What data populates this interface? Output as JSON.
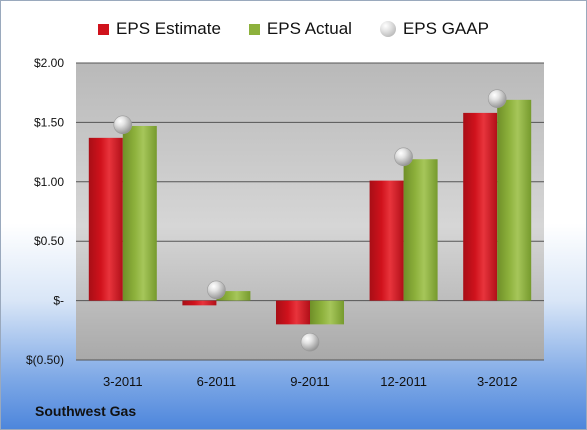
{
  "legend": {
    "estimate_label": "EPS Estimate",
    "actual_label": "EPS Actual",
    "gaap_label": "EPS GAAP"
  },
  "company": "Southwest Gas",
  "colors": {
    "estimate": "#d0121c",
    "actual": "#8db13c",
    "gaap": "#bdbdbd"
  },
  "chart_data": {
    "type": "bar",
    "title": "",
    "xlabel": "",
    "ylabel": "",
    "categories": [
      "3-2011",
      "6-2011",
      "9-2011",
      "12-2011",
      "3-2012"
    ],
    "series": [
      {
        "name": "EPS Estimate",
        "values": [
          1.37,
          -0.04,
          -0.2,
          1.01,
          1.58
        ]
      },
      {
        "name": "EPS Actual",
        "values": [
          1.47,
          0.08,
          -0.2,
          1.19,
          1.69
        ]
      },
      {
        "name": "EPS GAAP",
        "values": [
          1.48,
          0.09,
          -0.35,
          1.21,
          1.7
        ]
      }
    ],
    "ylim": [
      -0.5,
      2.0
    ],
    "yticks": [
      2.0,
      1.5,
      1.0,
      0.5,
      0,
      -0.5
    ],
    "ytick_labels": [
      "$2.00",
      "$1.50",
      "$1.00",
      "$0.50",
      "$-",
      "$(0.50)"
    ],
    "grid": true,
    "legend_position": "top"
  }
}
